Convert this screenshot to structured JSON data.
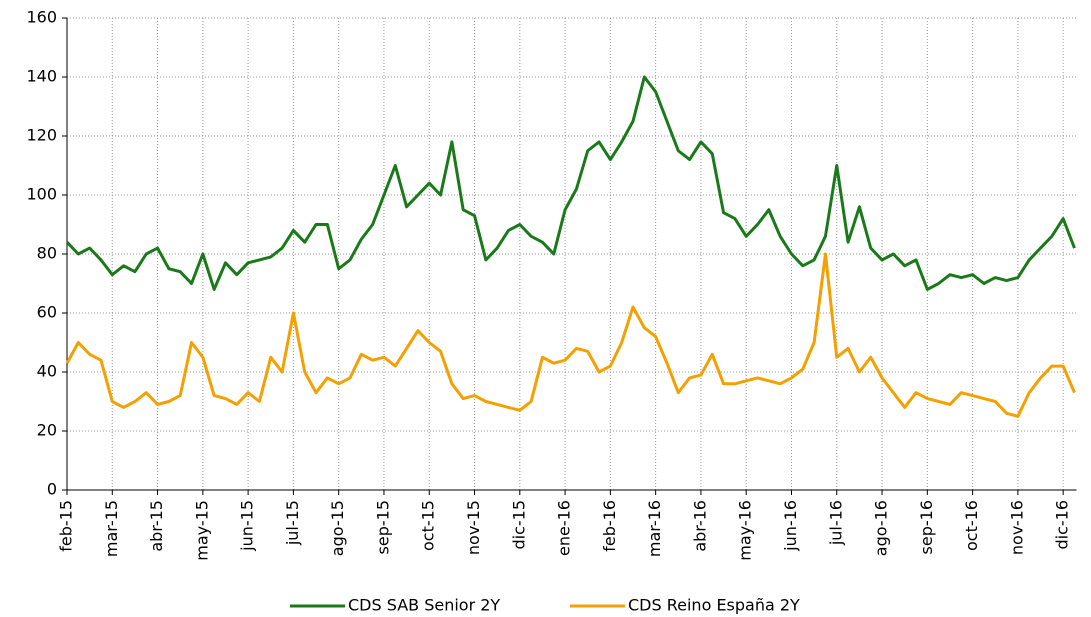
{
  "chart_data": {
    "type": "line",
    "categories": [
      "feb-15",
      null,
      null,
      null,
      "mar-15",
      null,
      null,
      null,
      "abr-15",
      null,
      null,
      null,
      "may-15",
      null,
      null,
      null,
      "jun-15",
      null,
      null,
      null,
      "jul-15",
      null,
      null,
      null,
      "ago-15",
      null,
      null,
      null,
      "sep-15",
      null,
      null,
      null,
      "oct-15",
      null,
      null,
      null,
      "nov-15",
      null,
      null,
      null,
      "dic-15",
      null,
      null,
      null,
      "ene-16",
      null,
      null,
      null,
      "feb-16",
      null,
      null,
      null,
      "mar-16",
      null,
      null,
      null,
      "abr-16",
      null,
      null,
      null,
      "may-16",
      null,
      null,
      null,
      "jun-16",
      null,
      null,
      null,
      "jul-16",
      null,
      null,
      null,
      "ago-16",
      null,
      null,
      null,
      "sep-16",
      null,
      null,
      null,
      "oct-16",
      null,
      null,
      null,
      "nov-16",
      null,
      null,
      null,
      "dic-16",
      null
    ],
    "series": [
      {
        "name": "CDS SAB Senior 2Y",
        "color": "#1a7a1a",
        "values": [
          84,
          80,
          82,
          78,
          73,
          76,
          74,
          80,
          82,
          75,
          74,
          70,
          80,
          68,
          77,
          73,
          77,
          78,
          79,
          82,
          88,
          84,
          90,
          90,
          75,
          78,
          85,
          90,
          100,
          110,
          96,
          100,
          104,
          100,
          118,
          95,
          93,
          78,
          82,
          88,
          90,
          86,
          84,
          80,
          95,
          102,
          115,
          118,
          112,
          118,
          125,
          140,
          135,
          125,
          115,
          112,
          118,
          114,
          94,
          92,
          86,
          90,
          95,
          86,
          80,
          76,
          78,
          86,
          110,
          84,
          96,
          82,
          78,
          80,
          76,
          78,
          68,
          70,
          73,
          72,
          73,
          70,
          72,
          71,
          72,
          78,
          82,
          86,
          92,
          82
        ]
      },
      {
        "name": "CDS Reino España 2Y",
        "color": "#f5a000",
        "values": [
          43,
          50,
          46,
          44,
          30,
          28,
          30,
          33,
          29,
          30,
          32,
          50,
          45,
          32,
          31,
          29,
          33,
          30,
          45,
          40,
          60,
          40,
          33,
          38,
          36,
          38,
          46,
          44,
          45,
          42,
          48,
          54,
          50,
          47,
          36,
          31,
          32,
          30,
          29,
          28,
          27,
          30,
          45,
          43,
          44,
          48,
          47,
          40,
          42,
          50,
          62,
          55,
          52,
          43,
          33,
          38,
          39,
          46,
          36,
          36,
          37,
          38,
          37,
          36,
          38,
          41,
          50,
          80,
          45,
          48,
          40,
          45,
          38,
          33,
          28,
          33,
          31,
          30,
          29,
          33,
          32,
          31,
          30,
          26,
          25,
          33,
          38,
          42,
          42,
          33
        ]
      }
    ],
    "ylim": [
      0,
      160
    ],
    "yticks": [
      0,
      20,
      40,
      60,
      80,
      100,
      120,
      140,
      160
    ],
    "grid": true,
    "legend": "bottom"
  }
}
